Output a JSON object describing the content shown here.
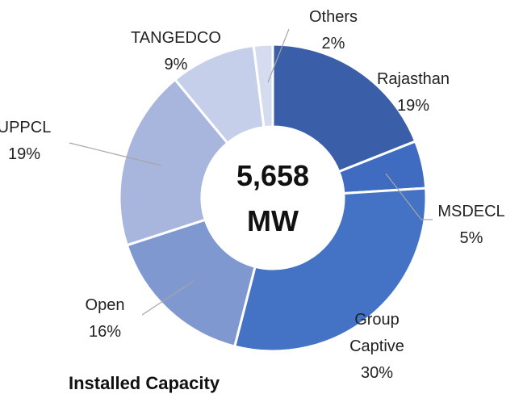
{
  "chart_data": {
    "type": "donut",
    "categories": [
      "Rajasthan",
      "MSDECL",
      "Group Captive",
      "Open",
      "UPPCL",
      "TANGEDCO",
      "Others"
    ],
    "values": [
      19,
      5,
      30,
      16,
      19,
      9,
      2
    ],
    "value_labels": [
      "19%",
      "5%",
      "30%",
      "16%",
      "19%",
      "9%",
      "2%"
    ],
    "colors": [
      "#3a5ea8",
      "#3f6cc0",
      "#4472c4",
      "#8098d0",
      "#a8b6dd",
      "#c6cfe9",
      "#d5dcef"
    ],
    "center_label": "5,658 MW",
    "title": "Installed Capacity"
  }
}
